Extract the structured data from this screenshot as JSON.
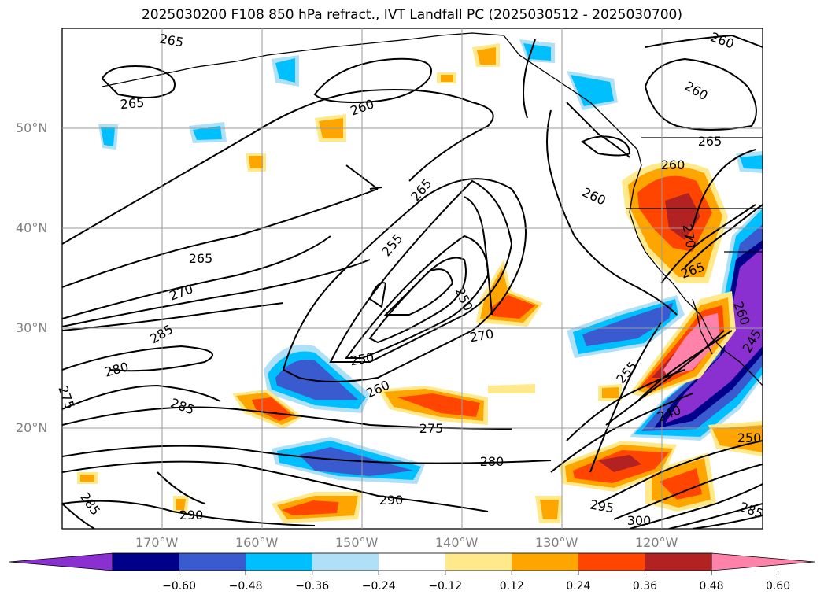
{
  "title": "2025030200 F108 850 hPa refract., IVT Landfall PC (2025030512 - 2025030700)",
  "latitude_labels": [
    "50°N",
    "40°N",
    "30°N",
    "20°N"
  ],
  "longitude_labels": [
    "170°W",
    "160°W",
    "150°W",
    "140°W",
    "130°W",
    "120°W"
  ],
  "contour_labels": [
    "265",
    "265",
    "260",
    "260",
    "260",
    "265",
    "260",
    "260",
    "265",
    "265",
    "270",
    "285",
    "280",
    "275",
    "285",
    "255",
    "250",
    "250",
    "270",
    "260",
    "275",
    "280",
    "290",
    "290",
    "285",
    "255",
    "295",
    "300",
    "265",
    "270",
    "245",
    "240",
    "250",
    "285",
    "260"
  ],
  "colorbar": {
    "tick_labels": [
      "−0.60",
      "−0.48",
      "−0.36",
      "−0.24",
      "−0.12",
      "0.12",
      "0.24",
      "0.36",
      "0.48",
      "0.60"
    ],
    "colors": [
      "#8b30d0",
      "#00008b",
      "#3a5ad0",
      "#00bfff",
      "#b0e0f8",
      "#ffffff",
      "#ffe98a",
      "#ffa500",
      "#ff4500",
      "#b22222",
      "#ff82ab"
    ]
  }
}
